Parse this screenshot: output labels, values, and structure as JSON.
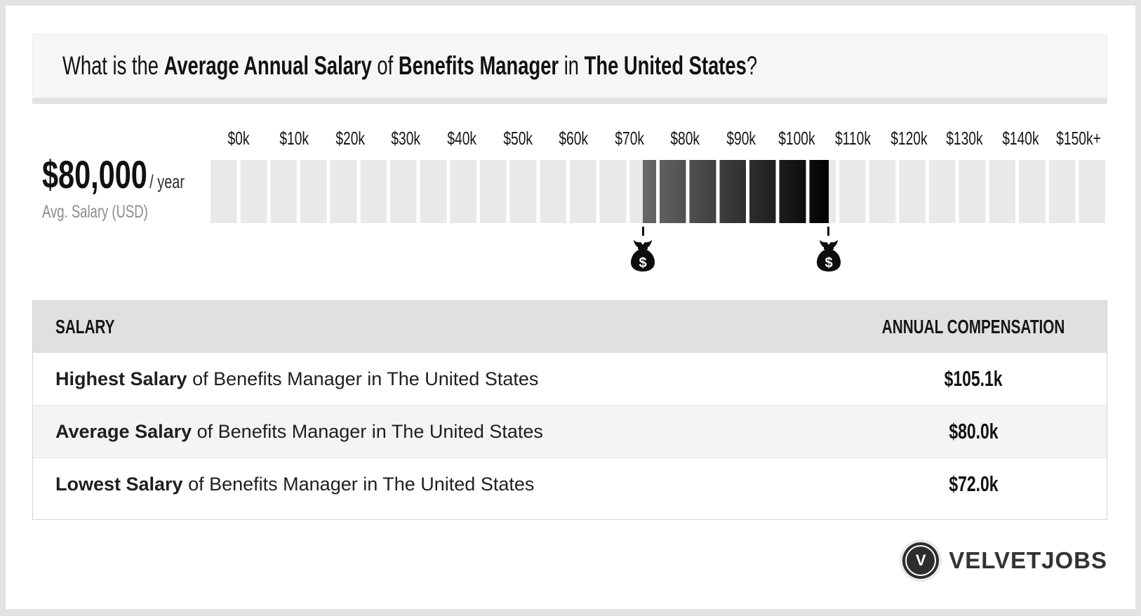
{
  "header": {
    "title_parts": [
      {
        "text": "What is the ",
        "bold": false
      },
      {
        "text": "Average Annual Salary",
        "bold": true
      },
      {
        "text": " of ",
        "bold": false
      },
      {
        "text": "Benefits Manager",
        "bold": true
      },
      {
        "text": " in ",
        "bold": false
      },
      {
        "text": "The United States",
        "bold": true
      },
      {
        "text": "?",
        "bold": false
      }
    ]
  },
  "summary": {
    "amount": "$80,000",
    "per": "/ year",
    "caption": "Avg. Salary (USD)"
  },
  "chart_data": {
    "type": "bar",
    "title": "Average Annual Salary of Benefits Manager in The United States",
    "x_ticks": [
      "$0k",
      "$10k",
      "$20k",
      "$30k",
      "$40k",
      "$50k",
      "$60k",
      "$70k",
      "$80k",
      "$90k",
      "$100k",
      "$110k",
      "$120k",
      "$130k",
      "$140k",
      "$150k+"
    ],
    "x_range_k": [
      0,
      160
    ],
    "unit": "USD thousands / year",
    "segments": 30,
    "values_k": {
      "lowest": 72.0,
      "average": 80.0,
      "highest": 105.1
    },
    "highlight_range_k": [
      72.0,
      105.1
    ],
    "marker_values_k": [
      72.0,
      105.1
    ],
    "colors": {
      "segment_light": "#e9e9e9",
      "highlight_start": "#696969",
      "highlight_end": "#010101",
      "gap": "#ffffff"
    },
    "legend": "none",
    "grid": false
  },
  "table": {
    "headers": [
      "SALARY",
      "ANNUAL COMPENSATION"
    ],
    "rows": [
      {
        "label_bold": "Highest Salary",
        "label_rest": " of Benefits Manager in The United States",
        "value": "$105.1k"
      },
      {
        "label_bold": "Average Salary",
        "label_rest": " of Benefits Manager in The United States",
        "value": "$80.0k"
      },
      {
        "label_bold": "Lowest Salary",
        "label_rest": " of Benefits Manager in The United States",
        "value": "$72.0k"
      }
    ]
  },
  "footer": {
    "logo_letter": "V",
    "brand": "VELVETJOBS"
  }
}
